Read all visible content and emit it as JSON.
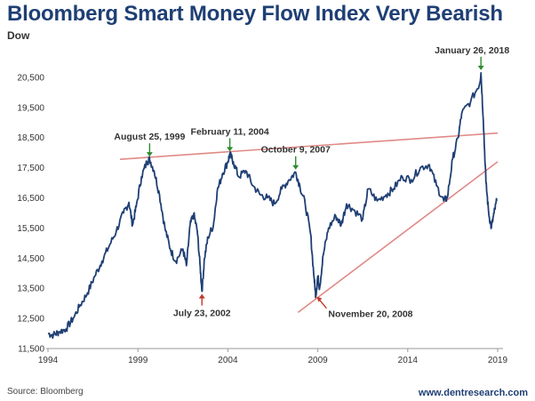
{
  "title": "Bloomberg Smart Money Flow Index Very Bearish",
  "subtitle": "Dow",
  "source": "Source: Bloomberg",
  "website": "www.dentresearch.com",
  "colors": {
    "line": "#1f3f74",
    "trend": "#e08a86",
    "arrow_peak": "#2e8b2e",
    "arrow_low": "#c0392b",
    "title": "#1f3f74"
  },
  "chart_data": {
    "type": "line",
    "title": "Bloomberg Smart Money Flow Index Very Bearish",
    "xlabel": "",
    "ylabel": "",
    "xlim": [
      1994,
      2019
    ],
    "ylim": [
      11500,
      21000
    ],
    "xticks": [
      "1994",
      "1999",
      "2004",
      "2009",
      "2014",
      "2019"
    ],
    "yticks": [
      "11,500",
      "12,500",
      "13,500",
      "14,500",
      "15,500",
      "16,500",
      "17,500",
      "18,500",
      "19,500",
      "20,500"
    ],
    "series": [
      {
        "values": [
          [
            1994.0,
            12000
          ],
          [
            1994.3,
            11950
          ],
          [
            1994.6,
            12050
          ],
          [
            1995.0,
            12150
          ],
          [
            1995.4,
            12500
          ],
          [
            1995.8,
            12950
          ],
          [
            1996.2,
            13350
          ],
          [
            1996.6,
            13900
          ],
          [
            1997.0,
            14400
          ],
          [
            1997.4,
            14900
          ],
          [
            1997.8,
            15400
          ],
          [
            1998.2,
            16000
          ],
          [
            1998.5,
            16350
          ],
          [
            1998.7,
            15600
          ],
          [
            1998.9,
            16200
          ],
          [
            1999.2,
            17200
          ],
          [
            1999.5,
            17700
          ],
          [
            1999.65,
            17780
          ],
          [
            1999.9,
            17400
          ],
          [
            2000.2,
            16600
          ],
          [
            2000.5,
            15500
          ],
          [
            2000.8,
            14800
          ],
          [
            2001.1,
            14400
          ],
          [
            2001.5,
            14800
          ],
          [
            2001.7,
            14250
          ],
          [
            2001.9,
            15600
          ],
          [
            2002.1,
            15950
          ],
          [
            2002.3,
            15400
          ],
          [
            2002.45,
            14300
          ],
          [
            2002.56,
            13400
          ],
          [
            2002.7,
            14500
          ],
          [
            2002.9,
            15200
          ],
          [
            2003.2,
            15600
          ],
          [
            2003.4,
            16700
          ],
          [
            2003.7,
            17300
          ],
          [
            2004.0,
            17700
          ],
          [
            2004.11,
            17950
          ],
          [
            2004.3,
            17700
          ],
          [
            2004.6,
            17200
          ],
          [
            2005.0,
            17400
          ],
          [
            2005.4,
            16900
          ],
          [
            2005.8,
            16600
          ],
          [
            2006.2,
            16500
          ],
          [
            2006.6,
            16300
          ],
          [
            2007.0,
            16800
          ],
          [
            2007.4,
            17100
          ],
          [
            2007.77,
            17350
          ],
          [
            2008.0,
            16900
          ],
          [
            2008.3,
            16300
          ],
          [
            2008.6,
            15300
          ],
          [
            2008.8,
            13800
          ],
          [
            2008.89,
            13250
          ],
          [
            2009.0,
            13900
          ],
          [
            2009.1,
            13500
          ],
          [
            2009.3,
            14600
          ],
          [
            2009.6,
            15500
          ],
          [
            2010.0,
            15900
          ],
          [
            2010.3,
            15600
          ],
          [
            2010.6,
            16300
          ],
          [
            2011.0,
            16100
          ],
          [
            2011.5,
            15800
          ],
          [
            2011.8,
            16800
          ],
          [
            2012.3,
            16400
          ],
          [
            2012.8,
            16600
          ],
          [
            2013.2,
            16800
          ],
          [
            2013.7,
            17200
          ],
          [
            2014.2,
            17100
          ],
          [
            2014.7,
            17500
          ],
          [
            2015.2,
            17600
          ],
          [
            2015.6,
            16900
          ],
          [
            2016.0,
            16400
          ],
          [
            2016.2,
            16500
          ],
          [
            2016.5,
            17800
          ],
          [
            2016.8,
            18500
          ],
          [
            2017.0,
            19300
          ],
          [
            2017.5,
            19700
          ],
          [
            2018.0,
            20300
          ],
          [
            2018.07,
            20650
          ],
          [
            2018.2,
            19100
          ],
          [
            2018.35,
            17000
          ],
          [
            2018.5,
            16000
          ],
          [
            2018.65,
            15500
          ],
          [
            2018.8,
            16000
          ],
          [
            2018.95,
            16400
          ]
        ]
      }
    ],
    "trendlines": [
      {
        "from": [
          1998.0,
          17780
        ],
        "to": [
          2019.0,
          18650
        ]
      },
      {
        "from": [
          2007.9,
          12700
        ],
        "to": [
          2019.0,
          17700
        ]
      }
    ],
    "annotations": [
      {
        "label": "August 25, 1999",
        "x": 1999.65,
        "y": 17780,
        "arrow": "down",
        "type": "peak"
      },
      {
        "label": "February 11, 2004",
        "x": 2004.11,
        "y": 17950,
        "arrow": "down",
        "type": "peak"
      },
      {
        "label": "October 9, 2007",
        "x": 2007.77,
        "y": 17350,
        "arrow": "down",
        "type": "peak"
      },
      {
        "label": "January 26, 2018",
        "x": 2018.07,
        "y": 20650,
        "arrow": "down",
        "type": "peak"
      },
      {
        "label": "July 23, 2002",
        "x": 2002.56,
        "y": 13400,
        "arrow": "up",
        "type": "low"
      },
      {
        "label": "November 20, 2008",
        "x": 2008.89,
        "y": 13250,
        "arrow": "up",
        "type": "low"
      }
    ],
    "grid": false,
    "legend": "none"
  }
}
